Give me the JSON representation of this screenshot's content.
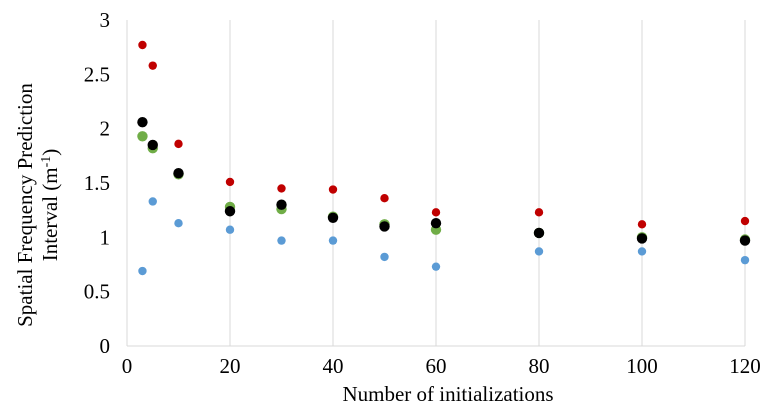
{
  "chart_data": {
    "type": "scatter",
    "xlabel": "Number of initializations",
    "ylabel_lines": [
      "Spatial Frequency Prediction",
      "Interval (m",
      "-1",
      ")"
    ],
    "xlim": [
      0,
      120
    ],
    "ylim": [
      0,
      3
    ],
    "x_ticks": [
      0,
      20,
      40,
      60,
      80,
      100,
      120
    ],
    "y_ticks": [
      0,
      0.5,
      1,
      1.5,
      2,
      2.5,
      3
    ],
    "x_tick_labels": [
      "0",
      "20",
      "40",
      "60",
      "80",
      "100",
      "120"
    ],
    "y_tick_labels": [
      "0",
      "0.5",
      "1",
      "1.5",
      "2",
      "2.5",
      "3"
    ],
    "grid": "vertical",
    "legend": "none",
    "series": [
      {
        "color": "#c00000",
        "marker_size": "small",
        "x": [
          3,
          5,
          10,
          20,
          30,
          40,
          50,
          60,
          80,
          100,
          120
        ],
        "y": [
          2.77,
          2.58,
          1.86,
          1.51,
          1.45,
          1.44,
          1.36,
          1.23,
          1.23,
          1.12,
          1.15
        ]
      },
      {
        "color": "#70ad47",
        "marker_size": "large",
        "x": [
          3,
          5,
          10,
          20,
          30,
          40,
          50,
          60,
          80,
          100,
          120
        ],
        "y": [
          1.93,
          1.82,
          1.58,
          1.28,
          1.26,
          1.19,
          1.12,
          1.07,
          1.04,
          1.0,
          0.98
        ]
      },
      {
        "color": "#000000",
        "marker_size": "large",
        "x": [
          3,
          5,
          10,
          20,
          30,
          40,
          50,
          60,
          80,
          100,
          120
        ],
        "y": [
          2.06,
          1.85,
          1.59,
          1.24,
          1.3,
          1.18,
          1.1,
          1.13,
          1.04,
          0.99,
          0.97
        ]
      },
      {
        "color": "#5b9bd5",
        "marker_size": "small",
        "x": [
          3,
          5,
          10,
          20,
          30,
          40,
          50,
          60,
          80,
          100,
          120
        ],
        "y": [
          0.69,
          1.33,
          1.13,
          1.07,
          0.97,
          0.97,
          0.82,
          0.73,
          0.87,
          0.87,
          0.79
        ]
      }
    ]
  }
}
